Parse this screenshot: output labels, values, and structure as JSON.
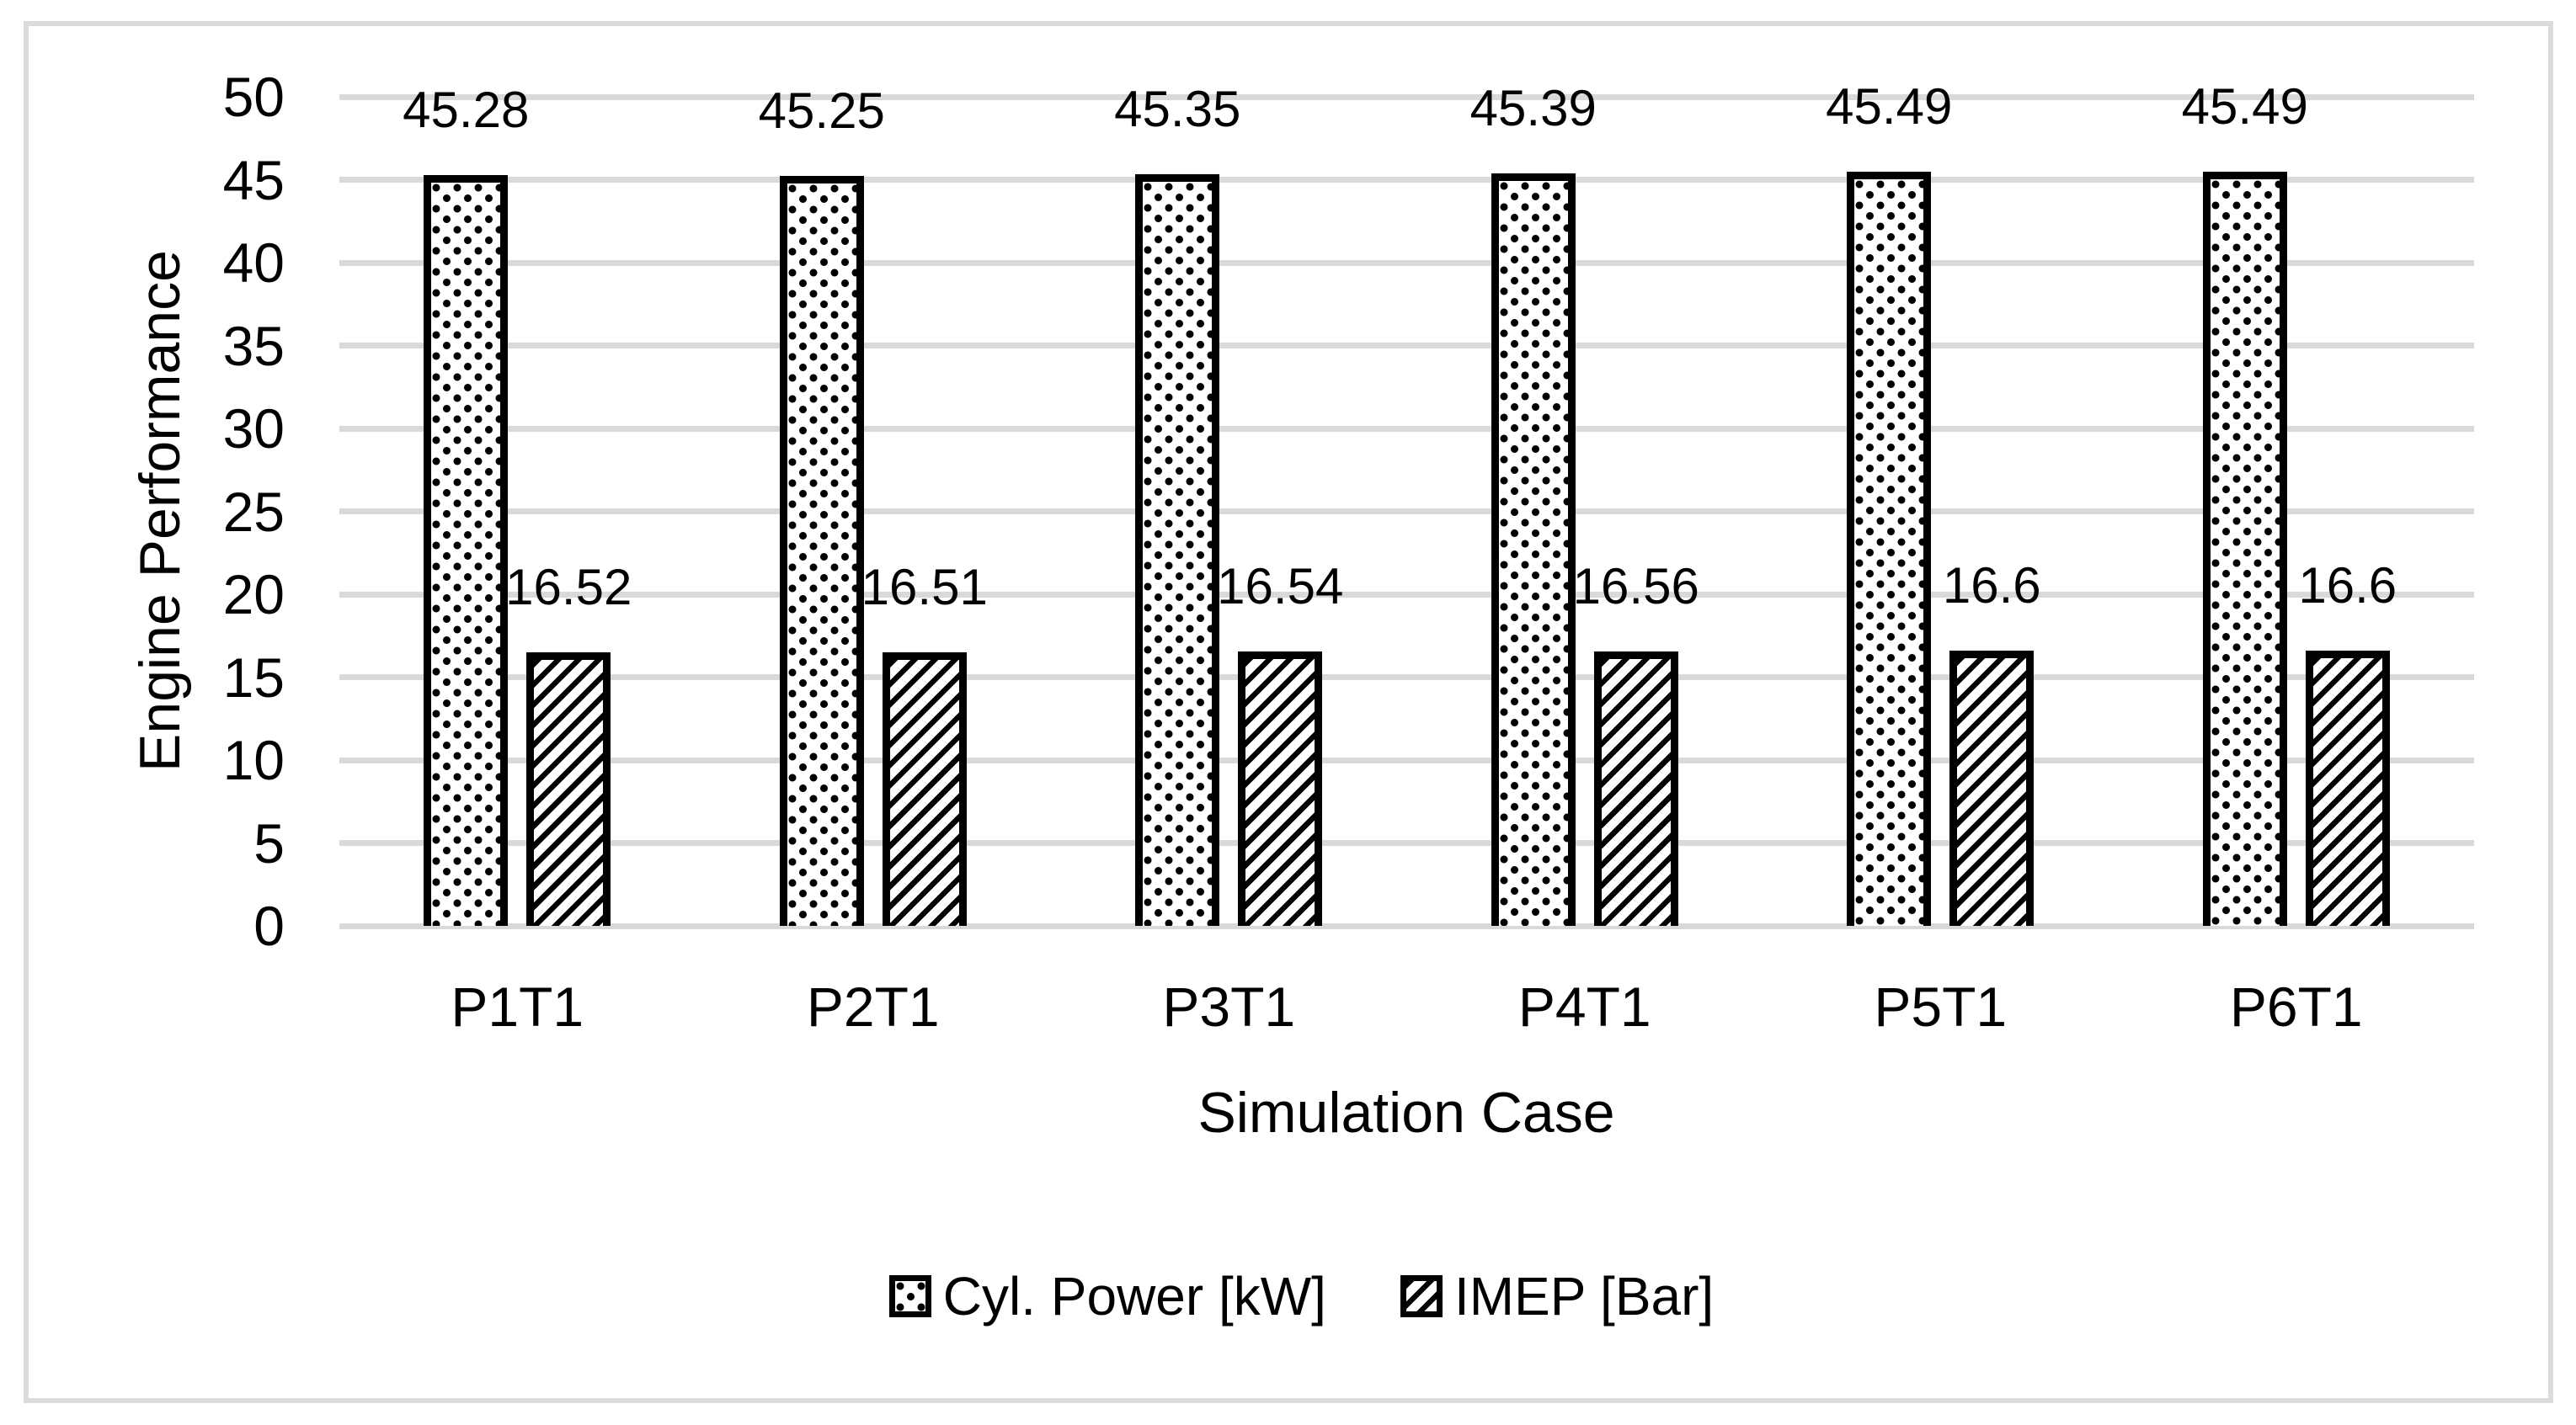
{
  "chart_data": {
    "type": "bar",
    "title": "",
    "categories": [
      "P1T1",
      "P2T1",
      "P3T1",
      "P4T1",
      "P5T1",
      "P6T1"
    ],
    "series": [
      {
        "name": "Cyl. Power [kW]",
        "pattern": "dots",
        "values": [
          45.28,
          45.25,
          45.35,
          45.39,
          45.49,
          45.49
        ]
      },
      {
        "name": "IMEP [Bar]",
        "pattern": "diagonal-hatch",
        "values": [
          16.52,
          16.51,
          16.54,
          16.56,
          16.6,
          16.6
        ]
      }
    ],
    "xlabel": "Simulation Case",
    "ylabel": "Engine Performance",
    "ylim": [
      0,
      50
    ],
    "yticks": [
      0,
      5,
      10,
      15,
      20,
      25,
      30,
      35,
      40,
      45,
      50
    ],
    "grid": true,
    "gridline_color": "#d9d9d9",
    "legend_position": "bottom",
    "data_labels": true
  },
  "colors": {
    "background": "#ffffff",
    "chart_border": "#dbdbdb",
    "gridline": "#d9d9d9",
    "bar_outline": "#000000",
    "text": "#000000"
  }
}
